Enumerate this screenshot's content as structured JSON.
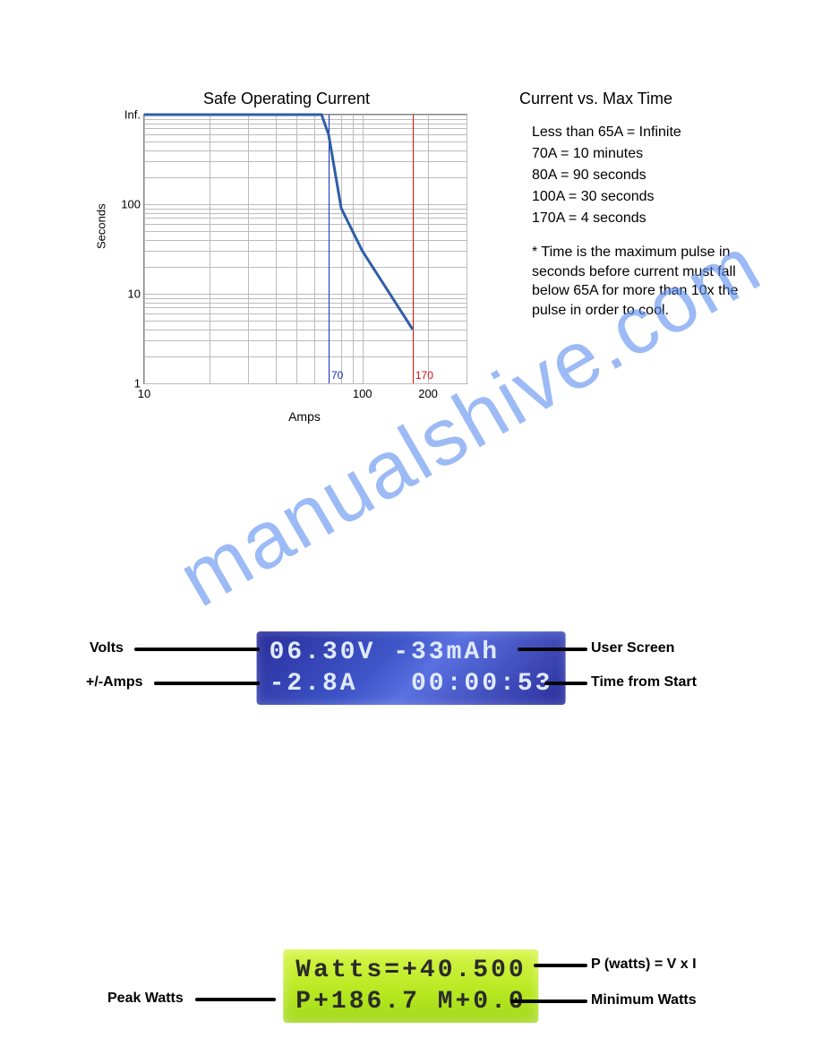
{
  "watermark": "manualshive.com",
  "chart": {
    "title": "Safe Operating Current",
    "xlabel": "Amps",
    "ylabel": "Seconds",
    "type": "line",
    "x_scale": "log",
    "y_scale": "log",
    "xlim": [
      10,
      300
    ],
    "ylim": [
      1,
      1000
    ],
    "x_ticks": [
      10,
      100,
      200
    ],
    "y_ticks_labels": [
      "Inf.",
      "100",
      "10",
      "1"
    ],
    "y_ticks_values": [
      1000,
      100,
      10,
      1
    ],
    "y_minor_ticks": [
      2,
      3,
      4,
      5,
      6,
      7,
      8,
      9,
      20,
      30,
      40,
      50,
      60,
      70,
      80,
      90,
      200,
      300,
      400,
      500,
      600,
      700,
      800,
      900
    ],
    "x_minor_ticks": [
      20,
      30,
      40,
      50,
      60,
      70,
      80,
      90,
      200,
      300
    ],
    "grid_color": "#bbbbbb",
    "line_color": "#2f5ea8",
    "line_width": 3,
    "series": [
      {
        "x": 10,
        "y": 1000
      },
      {
        "x": 65,
        "y": 1000
      },
      {
        "x": 70,
        "y": 600
      },
      {
        "x": 80,
        "y": 90
      },
      {
        "x": 100,
        "y": 30
      },
      {
        "x": 170,
        "y": 4
      }
    ],
    "markers": [
      {
        "x": 70,
        "color": "#1030c0",
        "label": "70"
      },
      {
        "x": 170,
        "color": "#d01010",
        "label": "170"
      }
    ],
    "background_color": "#ffffff"
  },
  "right_panel": {
    "title": "Current vs. Max Time",
    "specs": [
      "Less than 65A = Infinite",
      "70A = 10 minutes",
      "80A = 90 seconds",
      "100A = 30 seconds",
      "170A = 4 seconds"
    ],
    "footnote": "* Time is the maximum pulse in seconds before current must fall below 65A for more than 10x the pulse in order to cool."
  },
  "lcd_blue": {
    "line1": "06.30V -33mAh",
    "line2": "-2.8A   00:00:53",
    "bg_colors": [
      "#2a2e9b",
      "#5a70e0"
    ],
    "text_color": "#e0eaff",
    "callouts": {
      "top_left": "Volts",
      "bot_left": "+/-Amps",
      "top_right": "User Screen",
      "bot_right": "Time from Start"
    }
  },
  "lcd_green": {
    "line1": "Watts=+40.500",
    "line2": "P+186.7 M+0.0",
    "bg_colors": [
      "#d8f548",
      "#9fd81a"
    ],
    "text_color": "#2b2b2b",
    "callouts": {
      "left": "Peak Watts",
      "top_right": "P (watts) = V x I",
      "bot_right": "Minimum Watts"
    }
  }
}
